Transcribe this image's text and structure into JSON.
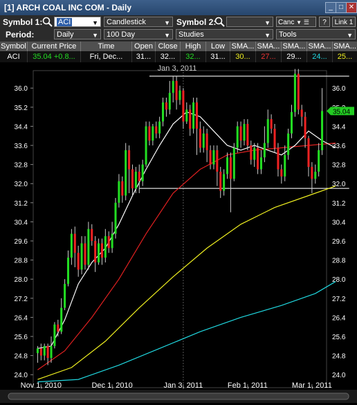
{
  "window": {
    "title": "[1] ARCH COAL INC COM - Daily",
    "buttons": [
      "_",
      "□",
      "✕"
    ]
  },
  "toolbar": {
    "symbol1_label": "Symbol 1:",
    "symbol1_value": "ACI",
    "chart_type": "Candlestick",
    "symbol2_label": "Symbol 2:",
    "symbol2_value": "",
    "cancel_label": "Canc",
    "help_label": "?",
    "link_label": "Link 1",
    "period_label": "Period:",
    "period_value": "Daily",
    "range_value": "100 Day",
    "studies_label": "Studies",
    "tools_label": "Tools"
  },
  "quote": {
    "headers": [
      "Symbol",
      "Current Price",
      "Time",
      "Open",
      "Close",
      "High",
      "Low",
      "SMA...",
      "SMA...",
      "SMA...",
      "SMA...",
      "SMA..."
    ],
    "row": {
      "symbol": "ACI",
      "price": "35.04",
      "change": "+0.8...",
      "time": "Fri, Dec...",
      "open": "31...",
      "close": "32...",
      "high": "32...",
      "low": "31...",
      "sma1": "30...",
      "sma2": "27...",
      "sma3": "29...",
      "sma4": "24...",
      "sma5": "25..."
    }
  },
  "colors": {
    "up": "#22dd22",
    "down": "#ee2222",
    "sma_white": "#ffffff",
    "sma_red": "#e02020",
    "sma_yellow": "#f0f020",
    "sma_cyan": "#20d8e0",
    "price_tag": "#22cc22"
  },
  "chart_data": {
    "type": "candlestick",
    "y_ticks": [
      "36.0",
      "35.2",
      "34.4",
      "33.6",
      "32.8",
      "32.0",
      "31.2",
      "30.4",
      "29.6",
      "28.8",
      "28.0",
      "27.2",
      "26.4",
      "25.6",
      "24.8",
      "24.0"
    ],
    "ylim": [
      23.6,
      36.5
    ],
    "x_ticks": [
      {
        "label": "Nov 1, 2010",
        "index": 1
      },
      {
        "label": "Dec 1, 2010",
        "index": 22
      },
      {
        "label": "Jan 3, 2011",
        "index": 43
      },
      {
        "label": "Feb 1, 2011",
        "index": 62
      },
      {
        "label": "Mar 1, 2011",
        "index": 81
      }
    ],
    "crosshair_label": "Jan 3, 2011",
    "crosshair_index": 43,
    "last_price_label": "35.04",
    "last_price": 35.04,
    "resistance": {
      "from_index": 33,
      "to_index": 92,
      "value": 36.5
    },
    "support": {
      "from_index": 30,
      "to_index": 92,
      "value": 31.8
    },
    "candles": [
      [
        24.9,
        25.1,
        24.5,
        25.2
      ],
      [
        25.1,
        24.8,
        24.6,
        25.3
      ],
      [
        24.8,
        25.2,
        24.6,
        25.3
      ],
      [
        25.2,
        24.7,
        24.4,
        25.3
      ],
      [
        24.7,
        25.2,
        24.5,
        25.6
      ],
      [
        25.2,
        26.1,
        25.1,
        26.2
      ],
      [
        26.1,
        25.8,
        25.6,
        26.3
      ],
      [
        25.8,
        26.8,
        25.7,
        27.2
      ],
      [
        26.8,
        27.8,
        26.7,
        28.0
      ],
      [
        27.8,
        28.9,
        27.7,
        29.2
      ],
      [
        28.9,
        29.9,
        28.6,
        30.1
      ],
      [
        29.9,
        29.1,
        28.5,
        30.2
      ],
      [
        29.1,
        28.4,
        28.1,
        29.4
      ],
      [
        28.4,
        29.5,
        28.2,
        29.8
      ],
      [
        29.5,
        28.6,
        28.4,
        29.8
      ],
      [
        28.6,
        30.1,
        28.4,
        30.4
      ],
      [
        30.1,
        29.6,
        29.4,
        30.3
      ],
      [
        29.6,
        28.7,
        28.3,
        29.8
      ],
      [
        28.7,
        29.5,
        28.6,
        29.7
      ],
      [
        29.5,
        28.9,
        28.6,
        29.7
      ],
      [
        28.9,
        29.8,
        28.7,
        30.1
      ],
      [
        29.8,
        29.3,
        29.1,
        30.0
      ],
      [
        29.3,
        29.9,
        29.1,
        30.4
      ],
      [
        29.9,
        31.2,
        29.7,
        31.4
      ],
      [
        31.2,
        32.1,
        31.0,
        32.4
      ],
      [
        32.1,
        31.5,
        31.2,
        32.3
      ],
      [
        31.5,
        33.4,
        31.3,
        33.7
      ],
      [
        33.4,
        32.6,
        31.6,
        33.6
      ],
      [
        32.6,
        31.8,
        31.5,
        32.8
      ],
      [
        31.8,
        32.5,
        31.6,
        32.7
      ],
      [
        32.5,
        32.1,
        31.6,
        32.8
      ],
      [
        32.1,
        32.8,
        31.9,
        33.0
      ],
      [
        32.8,
        34.4,
        32.7,
        34.6
      ],
      [
        34.4,
        33.8,
        33.6,
        34.6
      ],
      [
        33.8,
        34.4,
        33.6,
        34.5
      ],
      [
        34.4,
        34.1,
        33.9,
        34.6
      ],
      [
        34.1,
        34.6,
        33.9,
        34.8
      ],
      [
        34.6,
        35.4,
        34.4,
        35.6
      ],
      [
        35.4,
        35.1,
        34.8,
        35.6
      ],
      [
        35.1,
        35.8,
        34.9,
        36.3
      ],
      [
        35.8,
        36.3,
        35.4,
        36.5
      ],
      [
        36.3,
        35.5,
        35.1,
        36.5
      ],
      [
        35.5,
        35.9,
        35.3,
        36.1
      ],
      [
        35.9,
        34.6,
        34.3,
        36.0
      ],
      [
        34.6,
        35.1,
        34.5,
        35.4
      ],
      [
        35.1,
        34.3,
        34.0,
        35.3
      ],
      [
        34.3,
        35.4,
        34.1,
        35.6
      ],
      [
        35.4,
        34.3,
        33.2,
        35.6
      ],
      [
        34.3,
        33.5,
        33.3,
        34.6
      ],
      [
        33.5,
        34.1,
        33.3,
        34.4
      ],
      [
        34.1,
        33.4,
        32.9,
        34.3
      ],
      [
        33.4,
        32.8,
        32.6,
        33.6
      ],
      [
        32.8,
        33.4,
        32.6,
        33.6
      ],
      [
        33.4,
        32.5,
        31.9,
        33.6
      ],
      [
        32.5,
        31.7,
        31.4,
        32.7
      ],
      [
        31.7,
        32.4,
        31.5,
        32.6
      ],
      [
        32.4,
        33.1,
        32.2,
        33.3
      ],
      [
        33.1,
        32.2,
        30.8,
        33.3
      ],
      [
        32.2,
        33.5,
        32.1,
        33.7
      ],
      [
        33.5,
        34.4,
        33.3,
        34.6
      ],
      [
        34.4,
        33.8,
        33.5,
        34.6
      ],
      [
        33.8,
        34.5,
        33.6,
        34.7
      ],
      [
        34.5,
        33.6,
        33.4,
        34.7
      ],
      [
        33.6,
        33.0,
        32.8,
        33.8
      ],
      [
        33.0,
        33.5,
        32.7,
        33.7
      ],
      [
        33.5,
        32.6,
        32.4,
        33.7
      ],
      [
        32.6,
        33.1,
        32.4,
        33.4
      ],
      [
        33.1,
        33.7,
        32.9,
        34.4
      ],
      [
        33.7,
        34.7,
        33.5,
        35.1
      ],
      [
        34.7,
        34.3,
        34.1,
        34.9
      ],
      [
        34.3,
        33.5,
        33.3,
        34.5
      ],
      [
        33.5,
        32.6,
        32.3,
        33.7
      ],
      [
        32.6,
        32.3,
        32.0,
        32.8
      ],
      [
        32.3,
        33.2,
        32.1,
        33.6
      ],
      [
        33.2,
        34.1,
        33.0,
        34.3
      ],
      [
        34.1,
        35.0,
        33.9,
        35.3
      ],
      [
        35.0,
        36.6,
        34.8,
        36.8
      ],
      [
        36.6,
        35.1,
        34.9,
        36.8
      ],
      [
        35.1,
        34.8,
        34.4,
        35.3
      ],
      [
        34.8,
        33.9,
        33.5,
        35.0
      ],
      [
        33.9,
        32.7,
        32.3,
        34.0
      ],
      [
        32.7,
        32.2,
        31.6,
        32.9
      ],
      [
        32.2,
        32.5,
        32.0,
        32.8
      ],
      [
        32.5,
        33.4,
        32.3,
        33.7
      ],
      [
        33.4,
        35.04,
        33.2,
        36.0
      ]
    ],
    "sma_white": [
      [
        0,
        25.1
      ],
      [
        4,
        25.2
      ],
      [
        8,
        26.3
      ],
      [
        12,
        27.8
      ],
      [
        16,
        28.7
      ],
      [
        20,
        29.3
      ],
      [
        24,
        30.3
      ],
      [
        28,
        31.5
      ],
      [
        32,
        32.6
      ],
      [
        36,
        33.6
      ],
      [
        40,
        34.5
      ],
      [
        44,
        35.0
      ],
      [
        48,
        34.8
      ],
      [
        52,
        34.2
      ],
      [
        56,
        33.6
      ],
      [
        60,
        33.4
      ],
      [
        64,
        33.6
      ],
      [
        68,
        33.4
      ],
      [
        72,
        33.2
      ],
      [
        76,
        33.6
      ],
      [
        80,
        34.2
      ],
      [
        84,
        33.8
      ],
      [
        88,
        33.5
      ]
    ],
    "sma_red": [
      [
        0,
        24.2
      ],
      [
        8,
        25.0
      ],
      [
        16,
        26.4
      ],
      [
        24,
        28.0
      ],
      [
        32,
        29.9
      ],
      [
        40,
        31.6
      ],
      [
        48,
        32.6
      ],
      [
        56,
        33.2
      ],
      [
        64,
        33.4
      ],
      [
        72,
        33.5
      ],
      [
        80,
        33.6
      ],
      [
        88,
        33.7
      ]
    ],
    "sma_yellow": [
      [
        0,
        23.8
      ],
      [
        10,
        24.3
      ],
      [
        20,
        25.4
      ],
      [
        30,
        26.8
      ],
      [
        40,
        28.1
      ],
      [
        50,
        29.3
      ],
      [
        60,
        30.3
      ],
      [
        70,
        31.0
      ],
      [
        80,
        31.5
      ],
      [
        88,
        31.9
      ]
    ],
    "sma_cyan": [
      [
        0,
        23.7
      ],
      [
        12,
        23.8
      ],
      [
        24,
        24.4
      ],
      [
        36,
        25.1
      ],
      [
        48,
        25.8
      ],
      [
        60,
        26.4
      ],
      [
        72,
        26.9
      ],
      [
        82,
        27.4
      ],
      [
        88,
        27.9
      ]
    ]
  }
}
